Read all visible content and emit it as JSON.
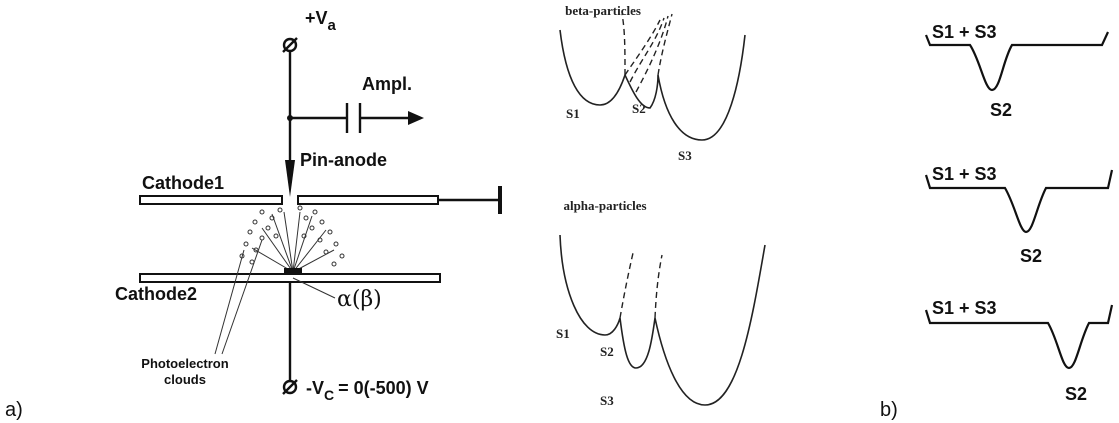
{
  "panel_a": {
    "label": "a)",
    "anode_voltage": {
      "symbol": "+V",
      "subscript": "a"
    },
    "amplifier": "Ampl.",
    "pin_anode": "Pin-anode",
    "cathode1": "Cathode1",
    "cathode2": "Cathode2",
    "source": "α(β)",
    "photoelectrons": [
      "Photoelectron",
      "clouds"
    ],
    "cathode_voltage": {
      "symbol": "-V",
      "subscript": "C",
      "rest": "= 0(-500) V"
    }
  },
  "middle": {
    "beta": {
      "title": "beta-particles",
      "labels": [
        "S1",
        "S2",
        "S3"
      ]
    },
    "alpha": {
      "title": "alpha-particles",
      "labels": [
        "S1",
        "S2",
        "S3"
      ]
    }
  },
  "panel_b": {
    "label": "b)",
    "pulses": [
      {
        "top": "S1 + S3",
        "bottom": "S2"
      },
      {
        "top": "S1 + S3",
        "bottom": "S2"
      },
      {
        "top": "S1 + S3",
        "bottom": "S2"
      }
    ]
  }
}
